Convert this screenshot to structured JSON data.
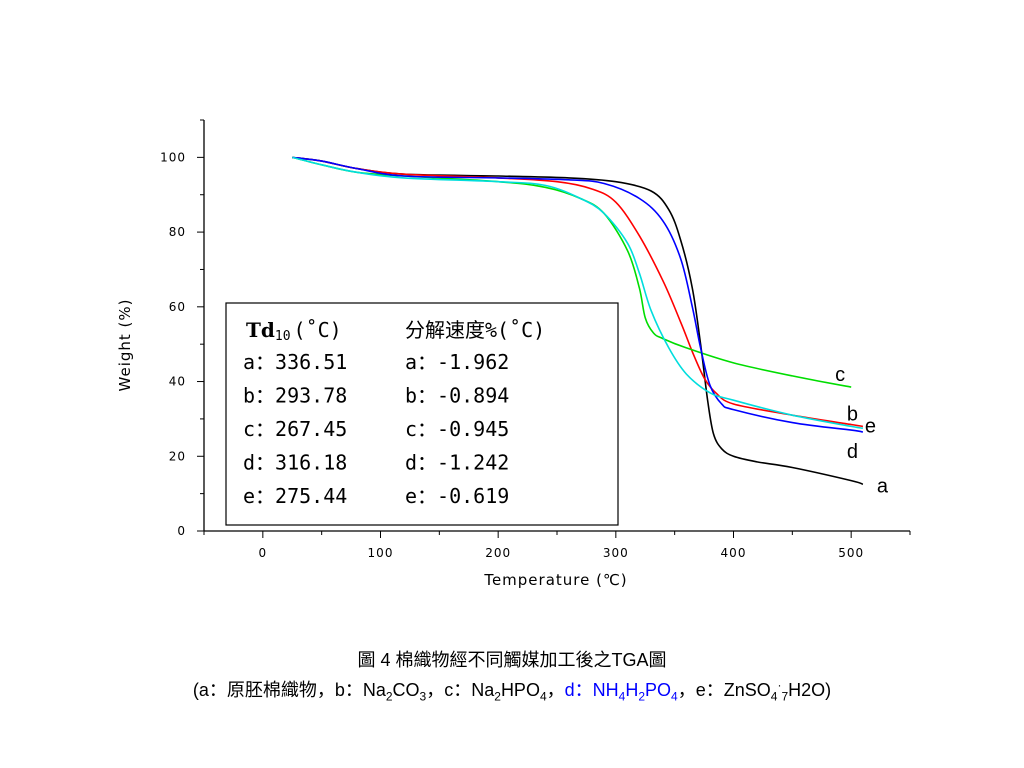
{
  "chart_data": {
    "type": "line",
    "xlabel": "Temperature  (℃)",
    "ylabel": "Weight (%)",
    "xlim": [
      -50,
      550
    ],
    "ylim": [
      0,
      110
    ],
    "x_ticks": [
      0,
      100,
      200,
      300,
      400,
      500
    ],
    "y_ticks": [
      0,
      20,
      40,
      60,
      80,
      100
    ],
    "series": [
      {
        "name": "a",
        "color": "#000000",
        "x": [
          25,
          50,
          80,
          120,
          200,
          260,
          300,
          330,
          345,
          355,
          365,
          372,
          378,
          383,
          390,
          400,
          420,
          450,
          500,
          510
        ],
        "y": [
          100,
          99,
          97,
          95.5,
          95,
          94.5,
          93.5,
          91,
          86,
          78,
          65,
          50,
          35,
          26,
          22,
          20,
          18.5,
          17,
          13.5,
          12.5
        ]
      },
      {
        "name": "b",
        "color": "#ff0000",
        "x": [
          25,
          50,
          80,
          120,
          200,
          250,
          280,
          300,
          320,
          340,
          355,
          365,
          375,
          385,
          400,
          450,
          500,
          510
        ],
        "y": [
          100,
          99,
          97,
          95.5,
          94.5,
          93.5,
          91.5,
          88,
          79,
          67,
          56,
          48,
          41,
          37,
          34,
          31,
          28.5,
          28
        ]
      },
      {
        "name": "c",
        "color": "#00dd00",
        "x": [
          25,
          50,
          80,
          120,
          200,
          240,
          270,
          290,
          310,
          320,
          325,
          332,
          340,
          360,
          400,
          450,
          500
        ],
        "y": [
          100,
          98,
          96,
          95,
          93.5,
          92,
          89,
          85,
          75,
          65,
          57,
          53,
          51.5,
          49,
          45,
          41.5,
          38.5
        ]
      },
      {
        "name": "d",
        "color": "#0000ff",
        "x": [
          25,
          50,
          80,
          120,
          200,
          260,
          290,
          320,
          340,
          355,
          365,
          372,
          380,
          390,
          400,
          450,
          500,
          510
        ],
        "y": [
          100,
          99,
          97,
          95,
          94.5,
          94,
          93,
          89,
          83,
          73,
          60,
          49,
          39,
          34,
          32.5,
          29,
          27,
          26.5
        ]
      },
      {
        "name": "e",
        "color": "#00dddd",
        "x": [
          25,
          50,
          80,
          120,
          200,
          240,
          270,
          290,
          310,
          320,
          330,
          345,
          360,
          380,
          400,
          450,
          500,
          510
        ],
        "y": [
          100,
          98,
          96,
          94.5,
          93.5,
          92.5,
          89,
          85,
          77,
          69,
          59,
          49,
          42,
          37,
          35,
          31,
          28,
          27.5
        ]
      }
    ],
    "curve_labels": [
      {
        "text": "a",
        "series": "a"
      },
      {
        "text": "b",
        "series": "b"
      },
      {
        "text": "c",
        "series": "c"
      },
      {
        "text": "d",
        "series": "d"
      },
      {
        "text": "e",
        "series": "e"
      }
    ]
  },
  "table": {
    "header_td_main": "Td",
    "header_td_sub": "10",
    "header_td_unit": "(˚C)",
    "header_rate": "分解速度%(˚C)",
    "rows": [
      {
        "td": "a：336.51",
        "rate": "a：-1.962"
      },
      {
        "td": "b：293.78",
        "rate": "b：-0.894"
      },
      {
        "td": "c：267.45",
        "rate": "c：-0.945"
      },
      {
        "td": "d：316.18",
        "rate": "d：-1.242"
      },
      {
        "td": "e：275.44",
        "rate": "e：-0.619"
      }
    ]
  },
  "caption": {
    "line1": "圖 4 棉織物經不同觸媒加工後之TGA圖",
    "l2_a": "(a：原胚棉織物，b：Na",
    "l2_b_sub": "2",
    "l2_c": "CO",
    "l2_d_sub": "3",
    "l2_e": "，c：Na",
    "l2_f_sub": "2",
    "l2_g": "HPO",
    "l2_h_sub": "4",
    "l2_i": "，",
    "l2_blue_a": "d：NH",
    "l2_blue_b_sub": "4",
    "l2_blue_c": "H",
    "l2_blue_d_sub": "2",
    "l2_blue_e": "PO",
    "l2_blue_f_sub": "4",
    "l2_j": "，e：ZnSO",
    "l2_k_sub": "4",
    "l2_l_sup": "·",
    "l2_m_sub": "7",
    "l2_n": "H2O)"
  }
}
